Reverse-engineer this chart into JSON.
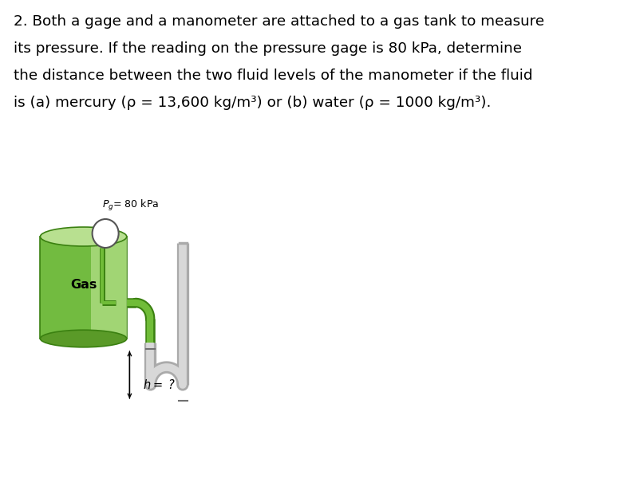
{
  "title_lines": [
    "2. Both a gage and a manometer are attached to a gas tank to measure",
    "its pressure. If the reading on the pressure gage is 80 kPa, determine",
    "the distance between the two fluid levels of the manometer if the fluid",
    "is (a) mercury (ρ = 13,600 kg/m³) or (b) water (ρ = 1000 kg/m³)."
  ],
  "title_fontsize": 13.2,
  "background_color": "#ffffff",
  "tank_color_body": "#72bb40",
  "tank_color_top_ell": "#b8e090",
  "tank_color_bot_ell": "#5a9a28",
  "tank_highlight": "#c8eca0",
  "pipe_fill": "#d8d8d8",
  "pipe_edge": "#aaaaaa",
  "green_dark": "#3a8010",
  "green_mid": "#70bc38",
  "green_light": "#98d860",
  "label_gas": "Gas",
  "label_pg": "$P_g$= 80 kPa",
  "label_h": "$h=$ ?"
}
